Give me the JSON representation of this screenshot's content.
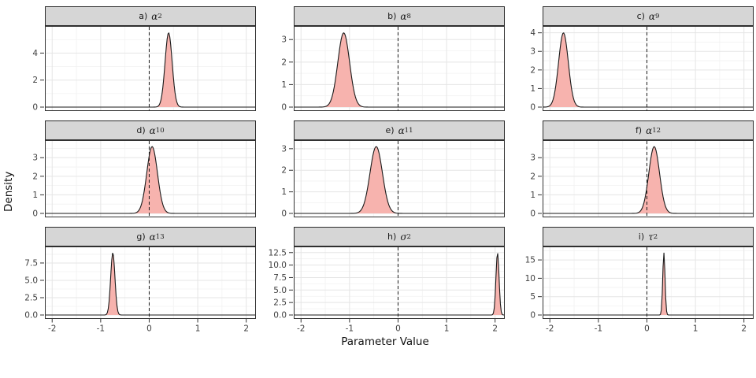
{
  "figure": {
    "xlabel": "Parameter Value",
    "ylabel": "Density"
  },
  "chart_data": {
    "type": "area",
    "subtype": "posterior-density-facets",
    "xlabel": "Parameter Value",
    "ylabel": "Density",
    "x_range": [
      -2.15,
      2.2
    ],
    "x_ticks": [
      -2,
      -1,
      0,
      1,
      2
    ],
    "x_tick_labels": [
      "-2",
      "-1",
      "0",
      "1",
      "2"
    ],
    "x_minor_ticks": [
      -1.5,
      -0.5,
      0.5,
      1.5
    ],
    "reference_line_x": 0,
    "grid": true,
    "legend": "none",
    "colors": {
      "fill": "#F7B3AE",
      "stroke": "#1a1a1a",
      "strip_bg": "#D6D6D6",
      "panel_border": "#333333",
      "grid_major": "#E5E5E5",
      "grid_minor": "#F2F2F2",
      "axis_text": "#404040",
      "ref_line": "#1a1a1a"
    },
    "facets": [
      {
        "name": "alpha-2",
        "label_prefix": "a)",
        "symbol": "α",
        "subscript": "2",
        "distribution": "gaussian",
        "mean": 0.4,
        "sd": 0.073,
        "peak_density": 5.5,
        "y_ticks": [
          0,
          2,
          4
        ],
        "y_tick_labels": [
          "0",
          "2",
          "4"
        ]
      },
      {
        "name": "alpha-8",
        "label_prefix": "b)",
        "symbol": "α",
        "subscript": "8",
        "distribution": "gaussian",
        "mean": -1.12,
        "sd": 0.121,
        "peak_density": 3.3,
        "y_ticks": [
          0,
          1,
          2,
          3
        ],
        "y_tick_labels": [
          "0",
          "1",
          "2",
          "3"
        ]
      },
      {
        "name": "alpha-9",
        "label_prefix": "c)",
        "symbol": "α",
        "subscript": "9",
        "distribution": "gaussian",
        "mean": -1.72,
        "sd": 0.1,
        "peak_density": 4.0,
        "y_ticks": [
          0,
          1,
          2,
          3,
          4
        ],
        "y_tick_labels": [
          "0",
          "1",
          "2",
          "3",
          "4"
        ]
      },
      {
        "name": "alpha-10",
        "label_prefix": "d)",
        "symbol": "α",
        "subscript": "10",
        "distribution": "gaussian",
        "mean": 0.06,
        "sd": 0.11,
        "peak_density": 3.6,
        "y_ticks": [
          0,
          1,
          2,
          3
        ],
        "y_tick_labels": [
          "0",
          "1",
          "2",
          "3"
        ]
      },
      {
        "name": "alpha-11",
        "label_prefix": "e)",
        "symbol": "α",
        "subscript": "11",
        "distribution": "gaussian",
        "mean": -0.45,
        "sd": 0.128,
        "peak_density": 3.1,
        "y_ticks": [
          0,
          1,
          2,
          3
        ],
        "y_tick_labels": [
          "0",
          "1",
          "2",
          "3"
        ]
      },
      {
        "name": "alpha-12",
        "label_prefix": "f)",
        "symbol": "α",
        "subscript": "12",
        "distribution": "gaussian",
        "mean": 0.15,
        "sd": 0.11,
        "peak_density": 3.6,
        "y_ticks": [
          0,
          1,
          2,
          3
        ],
        "y_tick_labels": [
          "0",
          "1",
          "2",
          "3"
        ]
      },
      {
        "name": "alpha-13",
        "label_prefix": "g)",
        "symbol": "α",
        "subscript": "13",
        "distribution": "gaussian",
        "mean": -0.75,
        "sd": 0.044,
        "peak_density": 9.0,
        "y_ticks": [
          0,
          2.5,
          5,
          7.5
        ],
        "y_tick_labels": [
          "0.0",
          "2.5",
          "5.0",
          "7.5"
        ]
      },
      {
        "name": "sigma-squared",
        "label_prefix": "h)",
        "symbol": "σ",
        "superscript": "2",
        "distribution": "gaussian",
        "mean": 2.05,
        "sd": 0.032,
        "peak_density": 12.5,
        "y_ticks": [
          0,
          2.5,
          5,
          7.5,
          10,
          12.5
        ],
        "y_tick_labels": [
          "0.0",
          "2.5",
          "5.0",
          "7.5",
          "10.0",
          "12.5"
        ]
      },
      {
        "name": "tau-squared",
        "label_prefix": "i)",
        "symbol": "τ",
        "superscript": "2",
        "distribution": "gaussian",
        "mean": 0.35,
        "sd": 0.0235,
        "peak_density": 17.0,
        "y_ticks": [
          0,
          5,
          10,
          15
        ],
        "y_tick_labels": [
          "0",
          "5",
          "10",
          "15"
        ]
      }
    ]
  }
}
